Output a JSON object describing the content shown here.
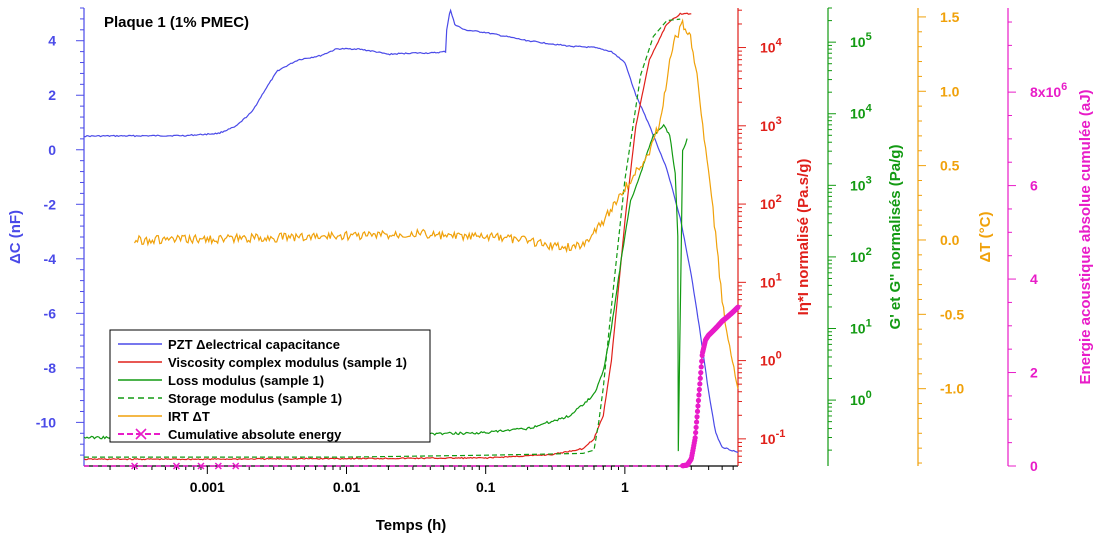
{
  "chart_data": {
    "type": "line",
    "title": "Plaque 1 (1% PMEC)",
    "x_axis": {
      "label": "Temps (h)",
      "scale": "log",
      "range": [
        0.00013,
        6.5
      ],
      "ticks": [
        {
          "v": 0.001,
          "t": "0.001"
        },
        {
          "v": 0.01,
          "t": "0.01"
        },
        {
          "v": 0.1,
          "t": "0.1"
        },
        {
          "v": 1,
          "t": "1"
        }
      ]
    },
    "y_axes": [
      {
        "id": "dC",
        "label": "ΔC (nF)",
        "color": "#4a4ae8",
        "scale": "linear",
        "range": [
          -11.6,
          5.2
        ],
        "ticks": [
          {
            "v": 4,
            "t": "4"
          },
          {
            "v": 2,
            "t": "2"
          },
          {
            "v": 0,
            "t": "0"
          },
          {
            "v": -2,
            "t": "-2"
          },
          {
            "v": -4,
            "t": "-4"
          },
          {
            "v": -6,
            "t": "-6"
          },
          {
            "v": -8,
            "t": "-8"
          },
          {
            "v": -10,
            "t": "-10"
          }
        ]
      },
      {
        "id": "eta",
        "label": "Iη*I normalisé (Pa.s/g)",
        "color": "#e0201a",
        "scale": "log",
        "range": [
          0.045,
          32000
        ],
        "ticks": [
          {
            "v": 0.1,
            "b": "10",
            "e": "-1"
          },
          {
            "v": 1,
            "b": "10",
            "e": "0"
          },
          {
            "v": 10,
            "b": "10",
            "e": "1"
          },
          {
            "v": 100,
            "b": "10",
            "e": "2"
          },
          {
            "v": 1000,
            "b": "10",
            "e": "3"
          },
          {
            "v": 10000,
            "b": "10",
            "e": "4"
          }
        ]
      },
      {
        "id": "mod",
        "label": "G' et G'' normalisés (Pa/g)",
        "color": "#129a12",
        "scale": "log",
        "range": [
          0.12,
          300000
        ],
        "ticks": [
          {
            "v": 1,
            "b": "10",
            "e": "0"
          },
          {
            "v": 10,
            "b": "10",
            "e": "1"
          },
          {
            "v": 100,
            "b": "10",
            "e": "2"
          },
          {
            "v": 1000,
            "b": "10",
            "e": "3"
          },
          {
            "v": 10000,
            "b": "10",
            "e": "4"
          },
          {
            "v": 100000,
            "b": "10",
            "e": "5"
          }
        ]
      },
      {
        "id": "dT",
        "label": "ΔT (°C)",
        "color": "#f0a10a",
        "scale": "linear",
        "range": [
          -1.52,
          1.56
        ],
        "ticks": [
          {
            "v": 1.5,
            "t": "1.5"
          },
          {
            "v": 1.0,
            "t": "1.0"
          },
          {
            "v": 0.5,
            "t": "0.5"
          },
          {
            "v": 0.0,
            "t": "0.0"
          },
          {
            "v": -0.5,
            "t": "-0.5"
          },
          {
            "v": -1.0,
            "t": "-1.0"
          }
        ]
      },
      {
        "id": "E",
        "label": "Energie acoustique absolue cumulée (aJ)",
        "color": "#e81cc8",
        "scale": "linear",
        "range": [
          0,
          9800000
        ],
        "ticks": [
          {
            "v": 0,
            "t": "0"
          },
          {
            "v": 2000000,
            "t": "2"
          },
          {
            "v": 4000000,
            "t": "4"
          },
          {
            "v": 6000000,
            "t": "6"
          },
          {
            "v": 8000000,
            "t": "8x10",
            "e": "6"
          }
        ]
      }
    ],
    "legend_position": "bottom-left",
    "series": [
      {
        "name": "PZT Δelectrical capacitance",
        "axis": "dC",
        "color": "#4a4ae8",
        "style": "solid",
        "x": [
          0.00013,
          0.0007,
          0.0012,
          0.0016,
          0.0021,
          0.0026,
          0.0032,
          0.0045,
          0.0065,
          0.0085,
          0.012,
          0.016,
          0.02,
          0.03,
          0.042,
          0.0515,
          0.0525,
          0.055,
          0.056,
          0.06,
          0.07,
          0.1,
          0.2,
          0.4,
          0.6,
          0.8,
          1.0,
          1.2,
          1.5,
          2.0,
          2.5,
          3.0,
          3.5,
          4.0,
          4.5,
          5.0,
          6.5
        ],
        "y": [
          0.5,
          0.52,
          0.6,
          0.85,
          1.4,
          2.2,
          2.9,
          3.3,
          3.45,
          3.7,
          3.7,
          3.6,
          3.5,
          3.55,
          3.55,
          3.6,
          4.4,
          5.0,
          5.1,
          4.6,
          4.4,
          4.3,
          4.0,
          3.8,
          3.75,
          3.6,
          3.2,
          2.0,
          0.9,
          -0.7,
          -2.5,
          -4.6,
          -6.8,
          -8.9,
          -10.4,
          -10.9,
          -11.1
        ]
      },
      {
        "name": "Viscosity complex modulus (sample 1)",
        "axis": "eta",
        "color": "#e0201a",
        "style": "solid",
        "x": [
          0.00013,
          0.001,
          0.01,
          0.1,
          0.3,
          0.5,
          0.6,
          0.7,
          0.8,
          1.0,
          1.2,
          1.5,
          2.0,
          2.5,
          3.0
        ],
        "y": [
          0.055,
          0.055,
          0.056,
          0.057,
          0.063,
          0.075,
          0.1,
          0.2,
          1.0,
          60,
          1000,
          7000,
          20000,
          27000,
          27000
        ]
      },
      {
        "name": "Loss modulus (sample 1)",
        "axis": "mod",
        "color": "#129a12",
        "style": "solid",
        "x": [
          0.00013,
          0.001,
          0.01,
          0.1,
          0.2,
          0.4,
          0.6,
          0.7,
          0.8,
          0.9,
          1.0,
          1.1,
          1.3,
          1.6,
          1.9,
          2.1,
          2.3,
          2.4,
          2.42,
          2.6,
          2.8
        ],
        "y": [
          0.3,
          0.3,
          0.32,
          0.35,
          0.4,
          0.6,
          1.2,
          2.5,
          10,
          50,
          200,
          600,
          1500,
          5000,
          7000,
          5000,
          1500,
          200,
          0.2,
          3000,
          4500
        ]
      },
      {
        "name": "Storage modulus (sample 1)",
        "axis": "mod",
        "color": "#129a12",
        "style": "dashed",
        "x": [
          0.00013,
          0.001,
          0.01,
          0.1,
          0.5,
          0.6,
          0.65,
          0.7,
          0.8,
          1.0,
          1.3,
          1.6,
          2.0,
          2.5
        ],
        "y": [
          0.16,
          0.16,
          0.16,
          0.17,
          0.18,
          0.2,
          0.5,
          1.5,
          20,
          1200,
          35000,
          120000,
          200000,
          210000
        ]
      },
      {
        "name": "IRT ΔT",
        "axis": "dT",
        "color": "#f0a10a",
        "style": "solid",
        "x": [
          0.0003,
          0.001,
          0.003,
          0.01,
          0.02,
          0.03,
          0.05,
          0.1,
          0.2,
          0.3,
          0.4,
          0.5,
          0.7,
          1.0,
          1.3,
          1.5,
          1.8,
          2.1,
          2.3,
          2.6,
          2.9,
          3.3,
          3.8,
          4.3,
          5.0,
          5.8,
          6.5
        ],
        "y": [
          0.0,
          0.005,
          0.015,
          0.03,
          0.035,
          0.05,
          0.025,
          0.02,
          0.0,
          -0.04,
          -0.05,
          -0.03,
          0.13,
          0.35,
          0.5,
          0.6,
          0.8,
          1.2,
          1.35,
          1.45,
          1.4,
          1.1,
          0.6,
          0.2,
          -0.4,
          -0.8,
          -1.0
        ]
      },
      {
        "name": "Cumulative absolute energy",
        "axis": "E",
        "color": "#e81cc8",
        "style": "dashed-marker",
        "x": [
          0.00013,
          0.001,
          0.01,
          0.1,
          1.0,
          2.5,
          2.8,
          3.0,
          3.2,
          3.4,
          3.6,
          3.8,
          4.0,
          4.5,
          5.0,
          5.5,
          6.5
        ],
        "y": [
          0,
          0,
          0,
          0,
          0,
          0,
          20000,
          150000,
          600000,
          1500000,
          2400000,
          2700000,
          2800000,
          2950000,
          3100000,
          3200000,
          3400000
        ]
      }
    ]
  }
}
